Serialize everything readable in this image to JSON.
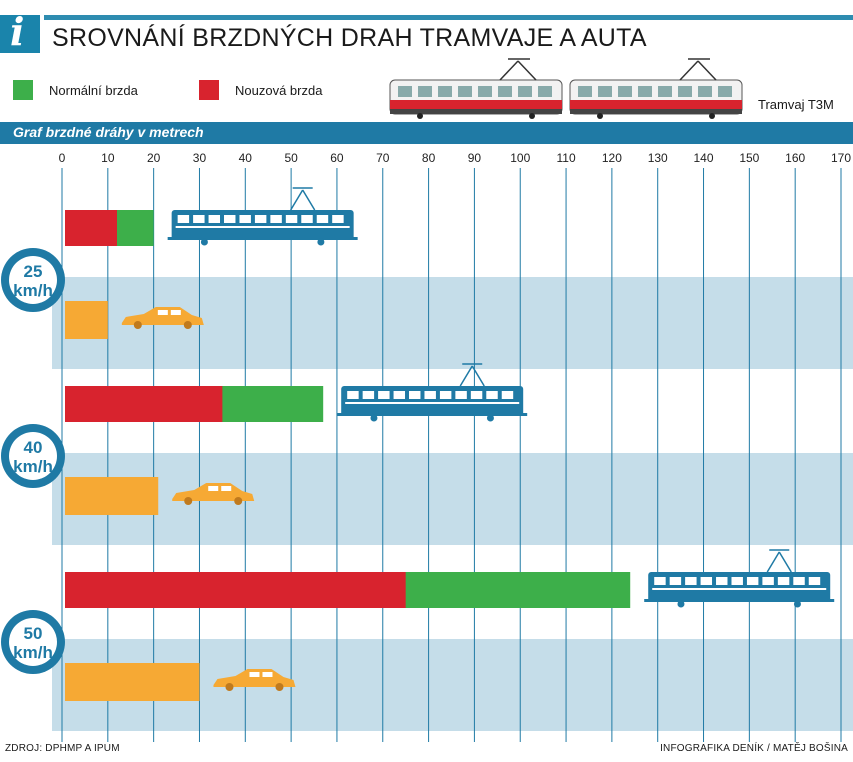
{
  "header": {
    "title": "SROVNÁNÍ BRZDNÝCH DRAH TRAMVAJE A AUTA",
    "info_glyph": "i"
  },
  "legend": {
    "normal": {
      "label": "Normální brzda",
      "color": "#3daf4a"
    },
    "emergency": {
      "label": "Nouzová brzda",
      "color": "#d8232e"
    },
    "car_color": "#f6a934",
    "tram_label": "Tramvaj T3M"
  },
  "graph_heading": "Graf brzdné dráhy v metrech",
  "footer": {
    "source": "ZDROJ: DPHMP A IPUM",
    "credit": "INFOGRAFIKA DENÍK / MATĚJ BOŠINA"
  },
  "colors": {
    "accent": "#1f7aa5",
    "band": "#c5dde9"
  },
  "chart_data": {
    "type": "bar",
    "xlim": [
      0,
      170
    ],
    "ticks": [
      0,
      10,
      20,
      30,
      40,
      50,
      60,
      70,
      80,
      90,
      100,
      110,
      120,
      130,
      140,
      150,
      160,
      170
    ],
    "groups": [
      {
        "speed": "25",
        "unit": "km/h",
        "tram_emergency": 12,
        "tram_normal": 20,
        "car": 10
      },
      {
        "speed": "40",
        "unit": "km/h",
        "tram_emergency": 35,
        "tram_normal": 57,
        "car": 21
      },
      {
        "speed": "50",
        "unit": "km/h",
        "tram_emergency": 75,
        "tram_normal": 124,
        "car": 30
      }
    ]
  }
}
